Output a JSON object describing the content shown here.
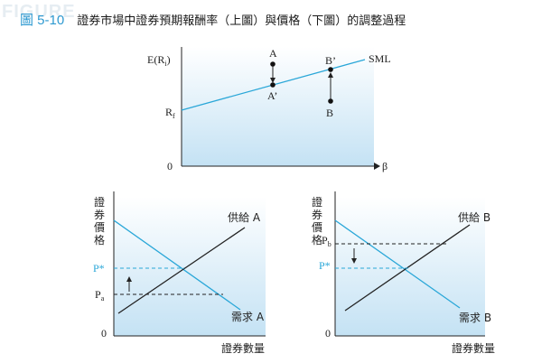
{
  "header": {
    "watermark": "FIGURE",
    "figure_number": "圖 5-10",
    "title": "證券市場中證券預期報酬率（上圖）與價格（下圖）的調整過程"
  },
  "top_chart": {
    "y_axis_label": "E(R",
    "y_axis_label_sub": "i",
    "y_axis_label_end": ")",
    "rf_label": "R",
    "rf_sub": "f",
    "origin": "0",
    "x_axis_label": "β",
    "line_label": "SML",
    "point_a": "A",
    "point_a_prime": "A’",
    "point_b": "B",
    "point_b_prime": "B’"
  },
  "left_chart": {
    "y_axis_label": [
      "證",
      "券",
      "價",
      "格"
    ],
    "x_axis_label": "證券數量",
    "origin": "0",
    "supply_label": "供給 A",
    "demand_label": "需求 A",
    "p_star": "P*",
    "p_a": "P",
    "p_a_sub": "a"
  },
  "right_chart": {
    "y_axis_label": [
      "證",
      "券",
      "價",
      "格"
    ],
    "x_axis_label": "證券數量",
    "origin": "0",
    "supply_label": "供給 B",
    "demand_label": "需求 B",
    "p_star": "P*",
    "p_b": "P",
    "p_b_sub": "b"
  },
  "colors": {
    "accent": "#2aa7d8",
    "panel_top": "#ffffff",
    "panel_bottom": "#c9e5f6"
  }
}
